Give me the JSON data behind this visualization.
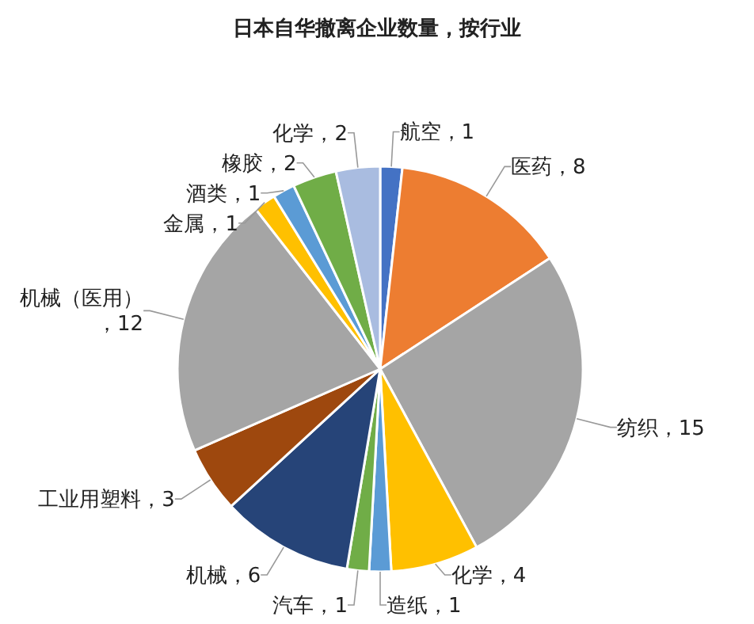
{
  "chart_data": {
    "type": "pie",
    "title": "日本自华撤离企业数量，按行业",
    "categories": [
      "航空",
      "医药",
      "纺织",
      "化学",
      "造纸",
      "汽车",
      "机械",
      "工业用塑料",
      "机械（医用）",
      "金属",
      "酒类",
      "橡胶",
      "化学"
    ],
    "values": [
      1,
      8,
      15,
      4,
      1,
      1,
      6,
      3,
      12,
      1,
      1,
      2,
      2
    ],
    "colors": [
      "#4472c4",
      "#ed7d31",
      "#a5a5a5",
      "#ffc000",
      "#5b9bd5",
      "#70ad47",
      "#264478",
      "#9e480e",
      "#a5a5a5",
      "#ffc000",
      "#5b9bd5",
      "#70ad47",
      "#a9bce0"
    ],
    "value_labels": [
      "，1",
      "，8",
      "，15",
      "，4",
      "，1",
      "，1",
      "，6",
      "，3",
      "，12",
      "，1",
      "，1",
      "，2",
      "，2"
    ]
  }
}
